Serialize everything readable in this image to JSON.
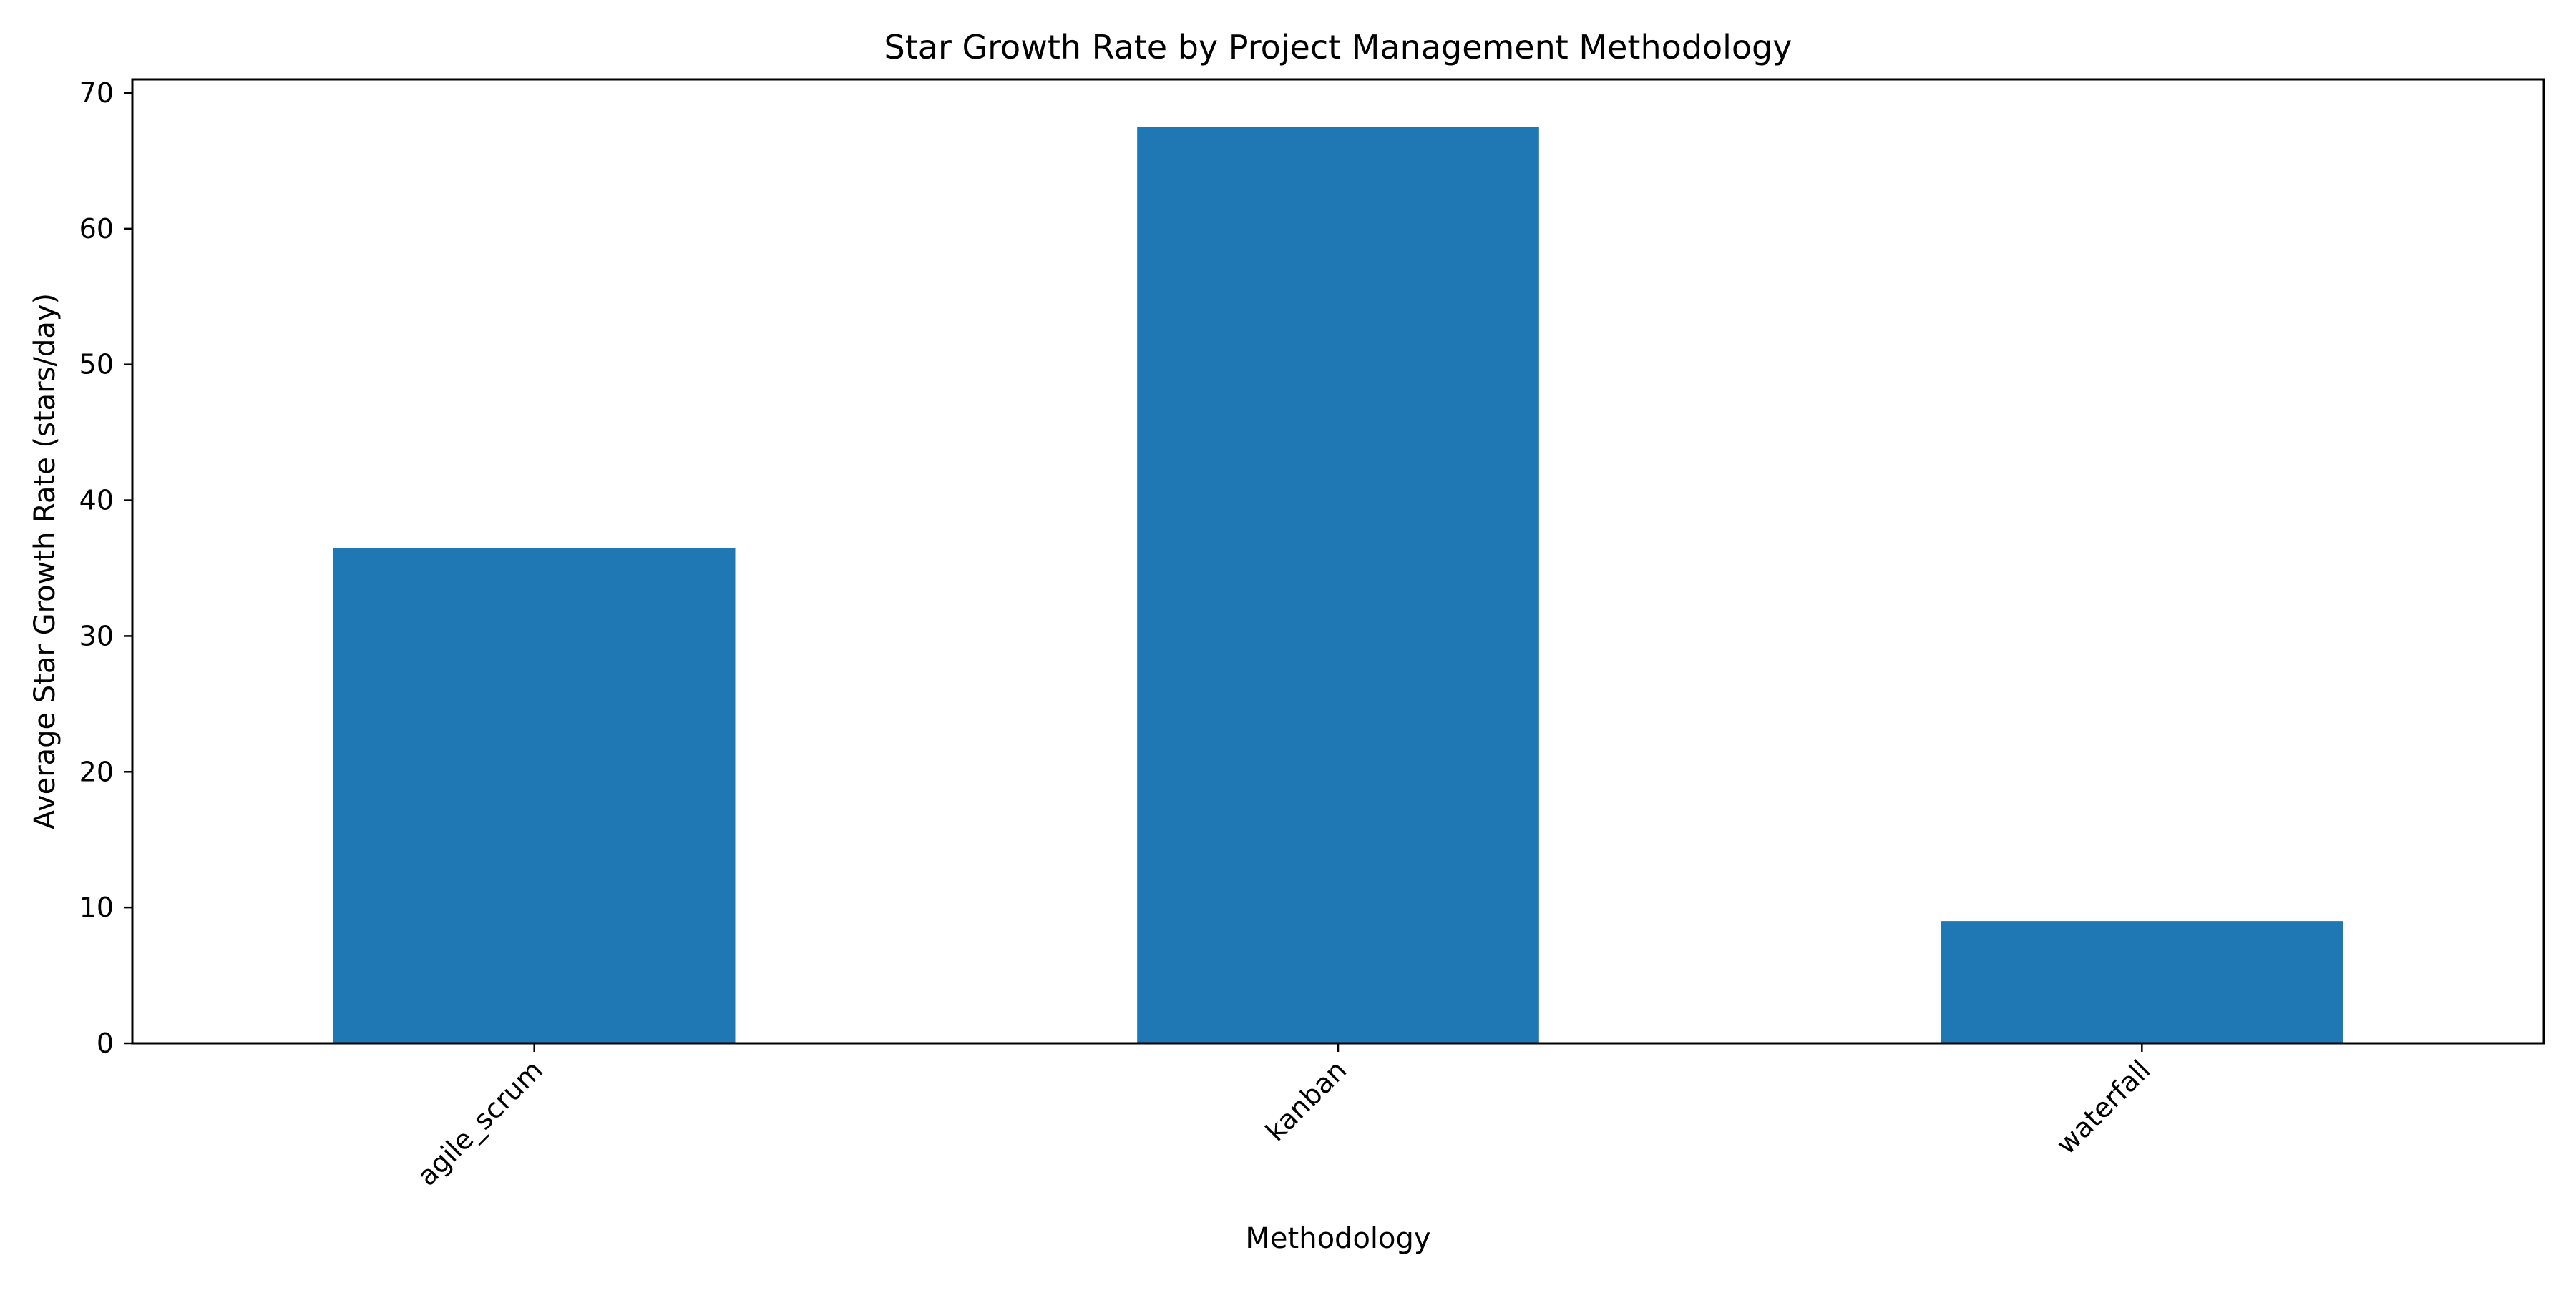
{
  "chart_data": {
    "type": "bar",
    "title": "Star Growth Rate by Project Management Methodology",
    "xlabel": "Methodology",
    "ylabel": "Average Star Growth Rate (stars/day)",
    "categories": [
      "agile_scrum",
      "kanban",
      "waterfall"
    ],
    "values": [
      36.5,
      67.5,
      9.0
    ],
    "ylim": [
      0,
      71
    ],
    "yticks": [
      0,
      10,
      20,
      30,
      40,
      50,
      60,
      70
    ],
    "bar_color": "#1f77b4",
    "grid": false,
    "legend": "none"
  }
}
